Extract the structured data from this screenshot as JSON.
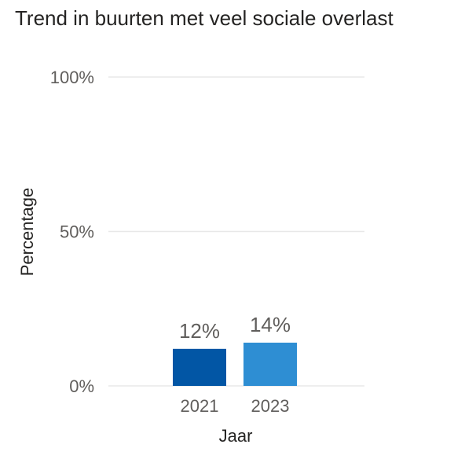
{
  "chart_data": {
    "type": "bar",
    "title": "Trend in buurten met veel sociale overlast",
    "xlabel": "Jaar",
    "ylabel": "Percentage",
    "categories": [
      "2021",
      "2023"
    ],
    "values": [
      12,
      14
    ],
    "data_labels": [
      "12%",
      "14%"
    ],
    "bar_colors": [
      "#0256A5",
      "#2E8ED3"
    ],
    "ylim": [
      0,
      100
    ],
    "yticks": [
      0,
      50,
      100
    ],
    "ytick_labels": [
      "0%",
      "50%",
      "100%"
    ],
    "grid": true,
    "legend": "none"
  }
}
